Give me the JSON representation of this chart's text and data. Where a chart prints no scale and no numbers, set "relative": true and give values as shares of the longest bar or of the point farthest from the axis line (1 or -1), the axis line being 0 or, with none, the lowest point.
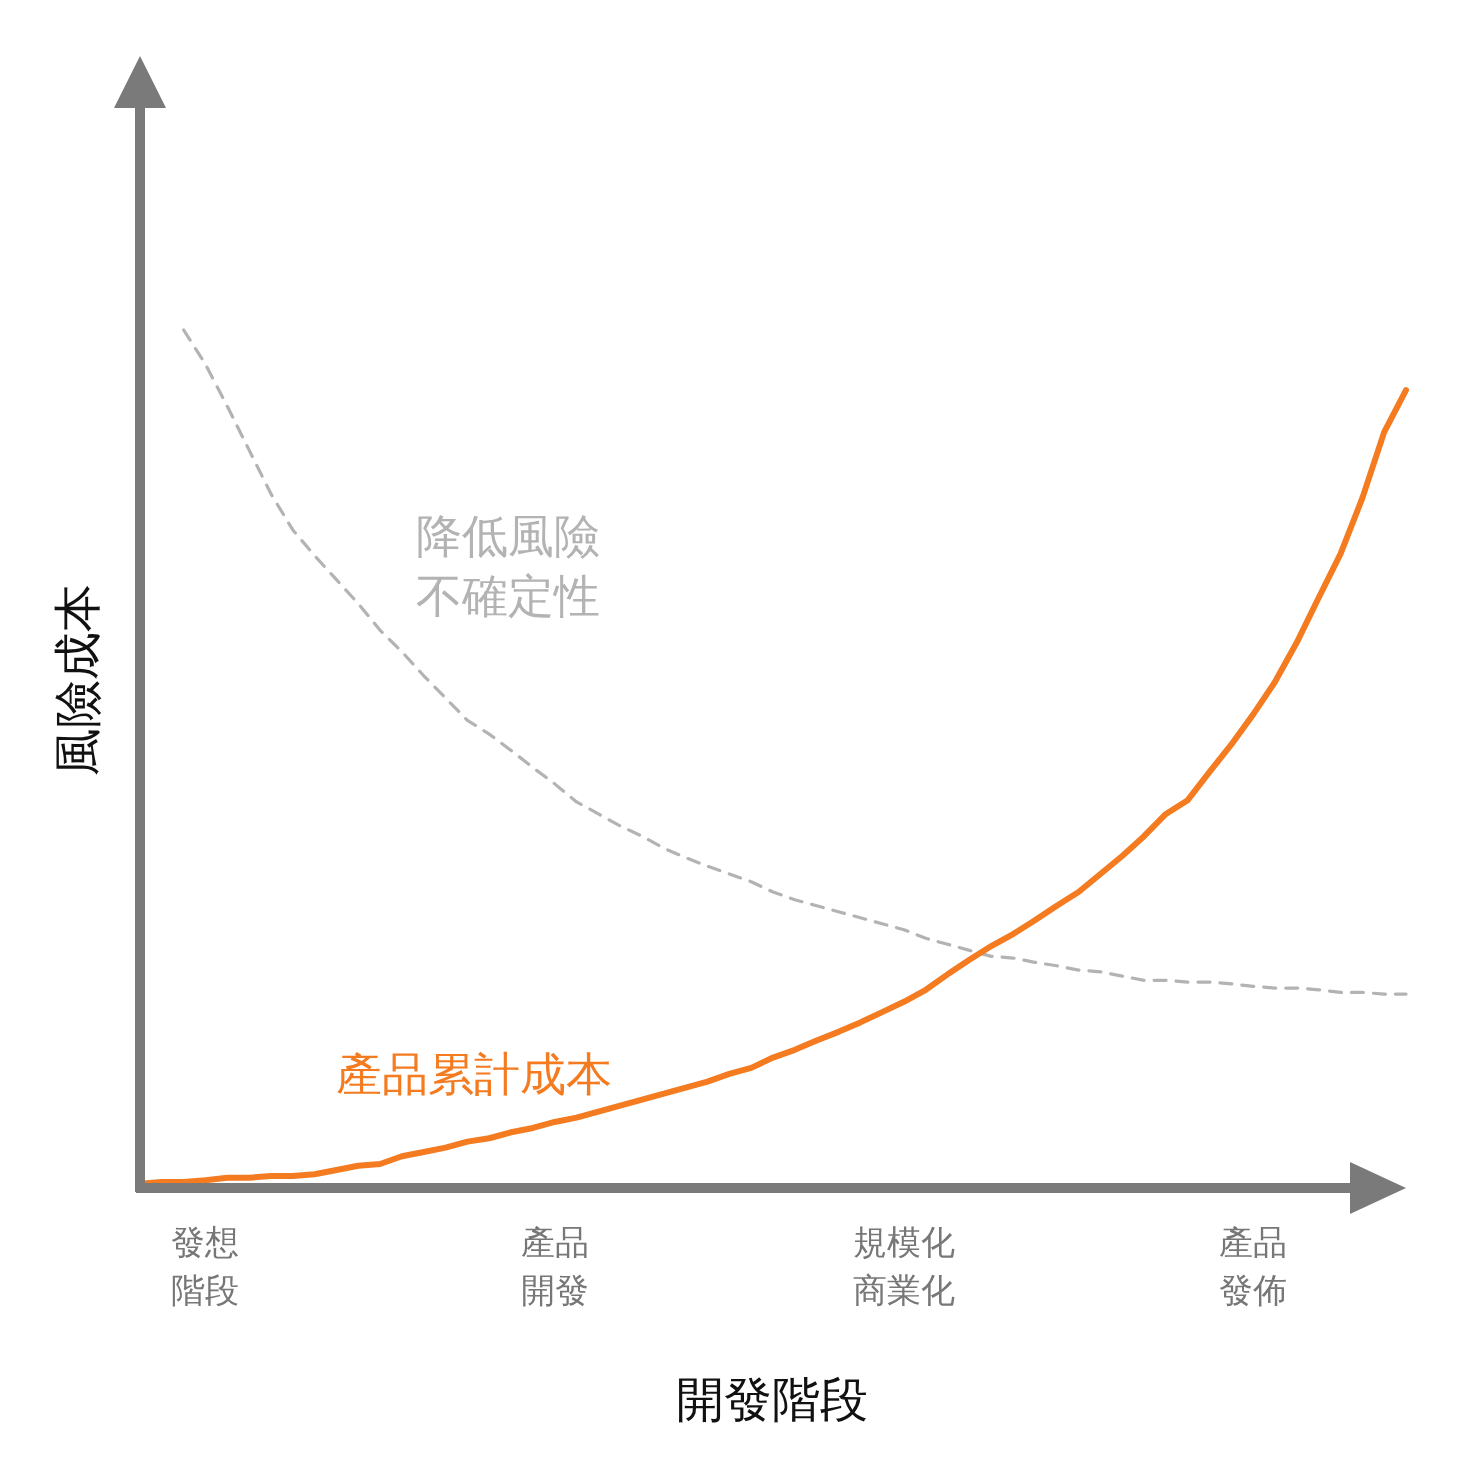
{
  "chart_data": {
    "type": "line",
    "relative": true,
    "xlabel": "開發階段",
    "ylabel": "風險成本",
    "categories": [
      null,
      null,
      null,
      "發想階段",
      null,
      null,
      null,
      null,
      null,
      null,
      null,
      null,
      null,
      null,
      null,
      null,
      null,
      null,
      null,
      "產品開發",
      null,
      null,
      null,
      null,
      null,
      null,
      null,
      null,
      null,
      null,
      null,
      null,
      null,
      null,
      null,
      "規模化商業化",
      null,
      null,
      null,
      null,
      null,
      null,
      null,
      null,
      null,
      null,
      null,
      null,
      null,
      null,
      null,
      "產品發佈",
      null,
      null,
      null,
      null,
      null,
      null,
      null
    ],
    "series": [
      {
        "name": "降低風險不確定性",
        "color": "#b3b3b3",
        "line_style": "dashed",
        "values": [
          null,
          null,
          1,
          0.96,
          0.911,
          0.86,
          0.809,
          0.767,
          0.737,
          0.709,
          0.681,
          0.65,
          0.625,
          0.597,
          0.571,
          0.545,
          0.529,
          0.51,
          0.49,
          0.471,
          0.45,
          0.436,
          0.422,
          0.41,
          0.396,
          0.385,
          0.375,
          0.366,
          0.357,
          0.345,
          0.336,
          0.329,
          0.322,
          0.315,
          0.308,
          0.301,
          0.291,
          0.284,
          0.277,
          0.27,
          0.268,
          0.263,
          0.259,
          0.254,
          0.252,
          0.247,
          0.242,
          0.242,
          0.24,
          0.24,
          0.238,
          0.235,
          0.233,
          0.233,
          0.231,
          0.228,
          0.228,
          0.226,
          0.226
        ]
      },
      {
        "name": "產品累計成本",
        "color": "#f47b20",
        "line_style": "solid",
        "values": [
          0.005,
          0.007,
          0.007,
          0.009,
          0.012,
          0.012,
          0.014,
          0.014,
          0.016,
          0.021,
          0.026,
          0.028,
          0.037,
          0.042,
          0.047,
          0.054,
          0.058,
          0.065,
          0.07,
          0.077,
          0.082,
          0.089,
          0.096,
          0.103,
          0.11,
          0.117,
          0.124,
          0.133,
          0.14,
          0.152,
          0.161,
          0.172,
          0.182,
          0.193,
          0.205,
          0.217,
          0.231,
          0.249,
          0.266,
          0.282,
          0.296,
          0.312,
          0.329,
          0.345,
          0.366,
          0.387,
          0.41,
          0.436,
          0.452,
          0.485,
          0.517,
          0.552,
          0.59,
          0.636,
          0.688,
          0.739,
          0.804,
          0.881,
          0.93
        ]
      }
    ]
  }
}
